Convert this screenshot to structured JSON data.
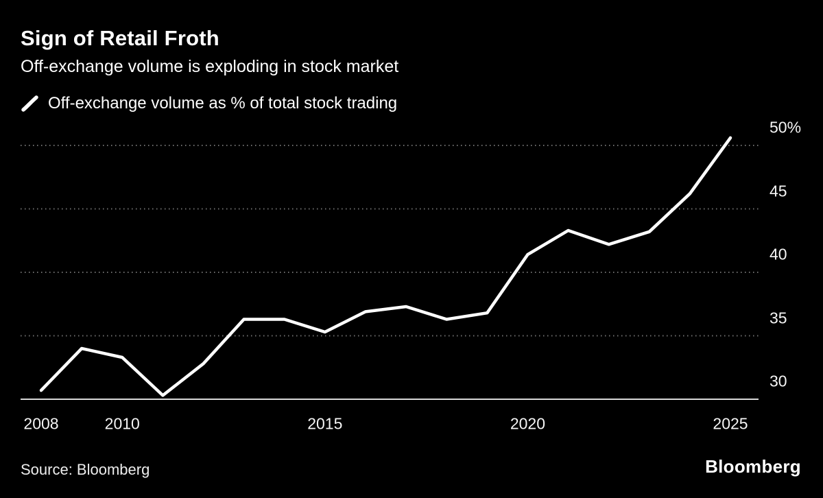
{
  "header": {
    "title": "Sign of Retail Froth",
    "subtitle": "Off-exchange volume is exploding in stock market",
    "legend": {
      "label": "Off-exchange volume as % of total stock trading",
      "color": "#ffffff"
    }
  },
  "chart_data": {
    "type": "line",
    "title": "Sign of Retail Froth",
    "subtitle": "Off-exchange volume is exploding in stock market",
    "series": [
      {
        "name": "Off-exchange volume as % of total stock trading",
        "color": "#ffffff",
        "x": [
          2008,
          2009,
          2010,
          2011,
          2012,
          2013,
          2014,
          2015,
          2016,
          2017,
          2018,
          2019,
          2020,
          2021,
          2022,
          2023,
          2024,
          2025
        ],
        "values": [
          30.7,
          34.0,
          33.3,
          30.3,
          32.8,
          36.3,
          36.3,
          35.3,
          36.9,
          37.3,
          36.3,
          36.8,
          41.4,
          43.3,
          42.2,
          43.2,
          46.2,
          50.6
        ]
      }
    ],
    "xlabel": "",
    "ylabel": "",
    "x_ticks": [
      2008,
      2010,
      2015,
      2020,
      2025
    ],
    "y_ticks": [
      {
        "value": 50,
        "label": "50%"
      },
      {
        "value": 45,
        "label": "45"
      },
      {
        "value": 40,
        "label": "40"
      },
      {
        "value": 35,
        "label": "35"
      },
      {
        "value": 30,
        "label": "30"
      }
    ],
    "ylim": [
      30,
      51.5
    ],
    "xlim": [
      2008,
      2025
    ],
    "grid": "horizontal-dotted",
    "baseline_value": 30,
    "legend_position": "top-left"
  },
  "footer": {
    "source": "Source: Bloomberg",
    "brand": "Bloomberg"
  },
  "colors": {
    "background": "#000000",
    "line": "#ffffff",
    "grid": "#6f6f6f",
    "axis": "#d9d9d9",
    "text": "#ffffff"
  }
}
